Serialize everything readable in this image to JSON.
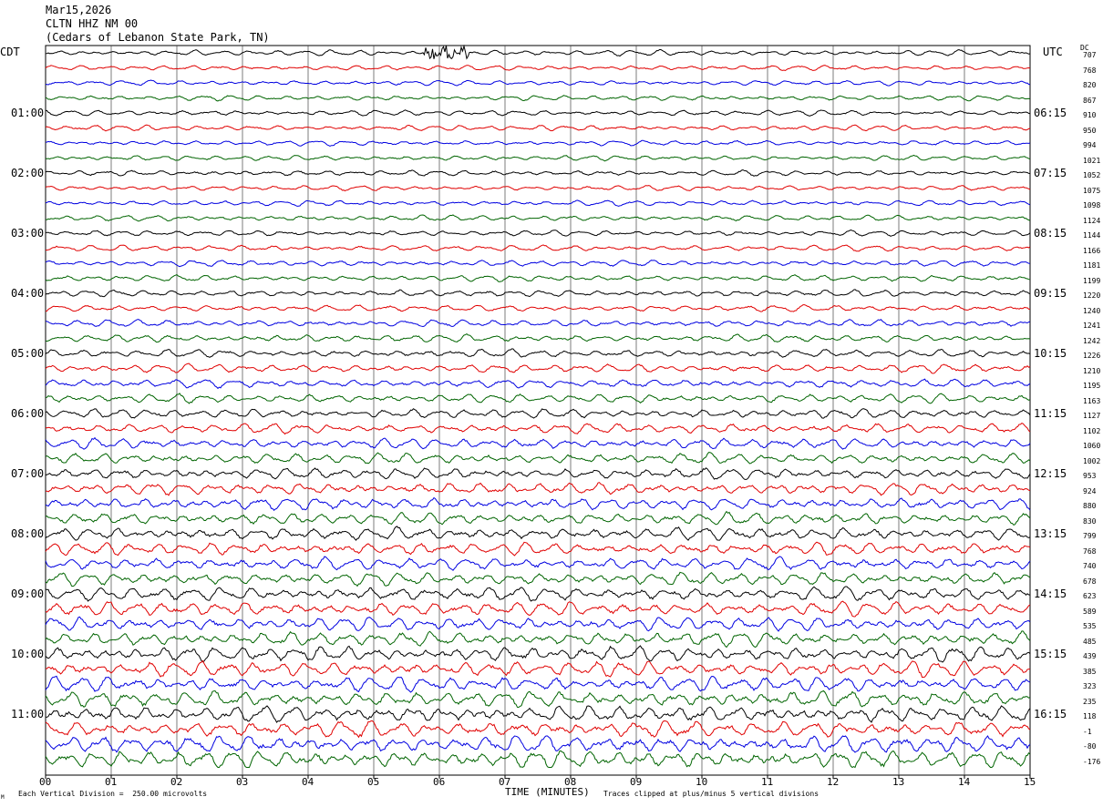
{
  "header": {
    "date": "Mar15,2026",
    "station": "CLTN HHZ NM 00",
    "location": "(Cedars of Lebanon State Park, TN)"
  },
  "left_axis_label": "CDT",
  "right_axis_label": "UTC",
  "dc_label": "DC",
  "footer": {
    "scale_note": "Each Vertical Division =  250.00 microvolts",
    "clip_note": "Traces clipped at plus/minus 5 vertical divisions",
    "corner_mark": "M"
  },
  "colors": {
    "black": "#000000",
    "red": "#e00000",
    "blue": "#0000e0",
    "green": "#006400",
    "grid": "#000000"
  },
  "chart_data": {
    "type": "line",
    "title": "CLTN HHZ NM 00",
    "xlabel": "TIME (MINUTES)",
    "ylabel": "",
    "xlim": [
      0,
      15
    ],
    "x_ticks": [
      "00",
      "01",
      "02",
      "03",
      "04",
      "05",
      "06",
      "07",
      "08",
      "09",
      "10",
      "11",
      "12",
      "13",
      "14",
      "15"
    ],
    "trace_colors": [
      "black",
      "red",
      "blue",
      "green"
    ],
    "cdt_hour_labels": [
      "01:00",
      "02:00",
      "03:00",
      "04:00",
      "05:00",
      "06:00",
      "07:00",
      "08:00",
      "09:00",
      "10:00",
      "11:00"
    ],
    "utc_hour_labels": [
      "06:15",
      "07:15",
      "08:15",
      "09:15",
      "10:15",
      "11:15",
      "12:15",
      "13:15",
      "14:15",
      "15:15",
      "16:15"
    ],
    "dc_offsets": [
      707,
      768,
      820,
      867,
      910,
      950,
      994,
      1021,
      1052,
      1075,
      1098,
      1124,
      1144,
      1166,
      1181,
      1199,
      1220,
      1240,
      1241,
      1242,
      1226,
      1210,
      1195,
      1163,
      1127,
      1102,
      1060,
      1002,
      953,
      924,
      880,
      830,
      799,
      768,
      740,
      678,
      623,
      589,
      535,
      485,
      439,
      385,
      323,
      235,
      118,
      -1,
      -80,
      -176
    ],
    "trace_amplitude_trend": [
      0.6,
      0.55,
      0.55,
      0.55,
      0.6,
      0.6,
      0.55,
      0.55,
      0.6,
      0.55,
      0.6,
      0.6,
      0.6,
      0.65,
      0.65,
      0.65,
      0.7,
      0.7,
      0.75,
      0.8,
      0.85,
      0.9,
      0.9,
      0.95,
      1.0,
      1.05,
      1.1,
      1.15,
      1.2,
      1.25,
      1.3,
      1.3,
      1.35,
      1.35,
      1.4,
      1.4,
      1.45,
      1.5,
      1.5,
      1.55,
      1.6,
      1.65,
      1.65,
      1.7,
      1.75,
      1.8,
      1.85,
      1.9
    ],
    "events": [
      {
        "trace": 0,
        "start_min": 5.75,
        "end_min": 6.45,
        "note": "local event burst"
      }
    ]
  }
}
